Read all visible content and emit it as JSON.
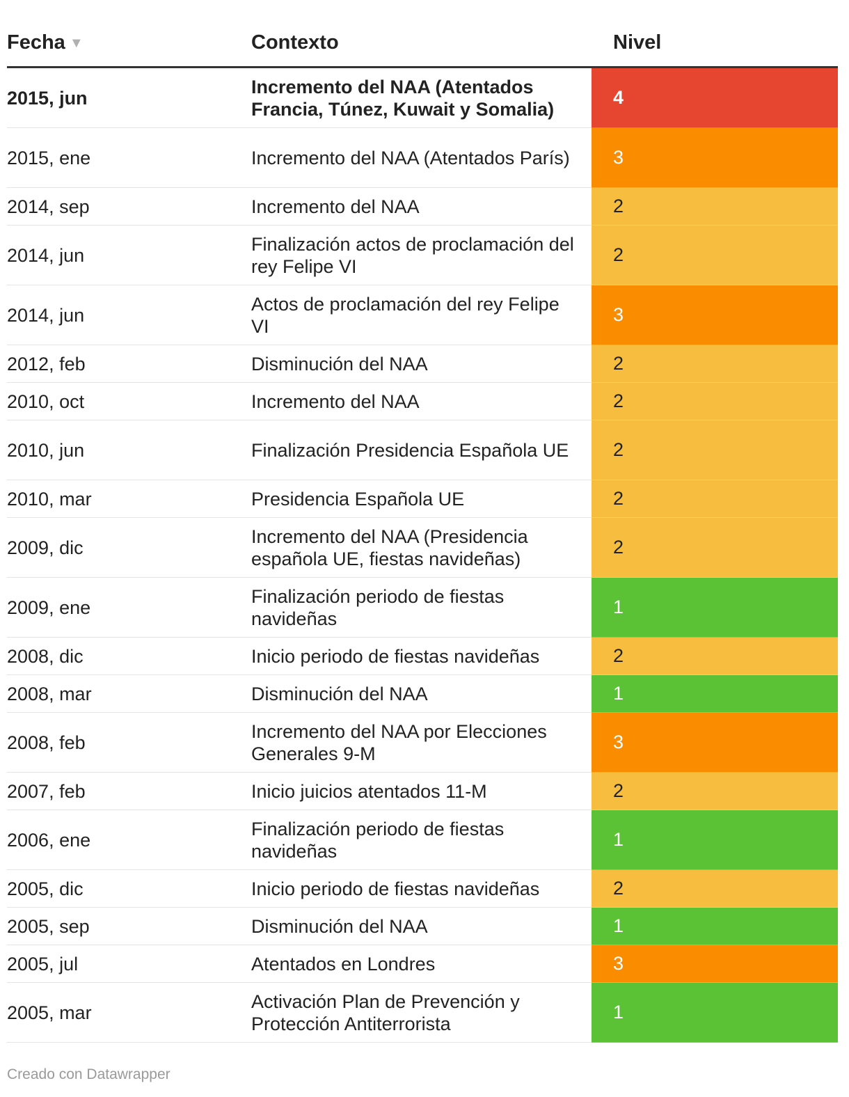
{
  "table": {
    "headers": {
      "fecha": "Fecha",
      "contexto": "Contexto",
      "nivel": "Nivel"
    },
    "sort_icon": "▼",
    "level_colors": {
      "1": "#5cc235",
      "2": "#f6bd3e",
      "3": "#fa8c00",
      "4": "#e64530"
    },
    "rows": [
      {
        "fecha": "2015, jun",
        "contexto": "Incremento del NAA (Atentados Francia, Túnez, Kuwait y Somalia)",
        "nivel": "4"
      },
      {
        "fecha": "2015, ene",
        "contexto": "Incremento del NAA (Atentados París)",
        "nivel": "3"
      },
      {
        "fecha": "2014, sep",
        "contexto": "Incremento del NAA",
        "nivel": "2"
      },
      {
        "fecha": "2014, jun",
        "contexto": "Finalización actos de proclamación del rey Felipe VI",
        "nivel": "2"
      },
      {
        "fecha": "2014, jun",
        "contexto": "Actos de proclamación del rey Felipe VI",
        "nivel": "3"
      },
      {
        "fecha": "2012, feb",
        "contexto": "Disminución del NAA",
        "nivel": "2"
      },
      {
        "fecha": "2010, oct",
        "contexto": "Incremento del NAA",
        "nivel": "2"
      },
      {
        "fecha": "2010, jun",
        "contexto": "Finalización Presidencia Española UE",
        "nivel": "2"
      },
      {
        "fecha": "2010, mar",
        "contexto": "Presidencia Española UE",
        "nivel": "2"
      },
      {
        "fecha": "2009, dic",
        "contexto": "Incremento del NAA (Presidencia española UE, fiestas navideñas)",
        "nivel": "2"
      },
      {
        "fecha": "2009, ene",
        "contexto": "Finalización periodo de fiestas navideñas",
        "nivel": "1"
      },
      {
        "fecha": "2008, dic",
        "contexto": "Inicio periodo de fiestas navideñas",
        "nivel": "2"
      },
      {
        "fecha": "2008, mar",
        "contexto": "Disminución del NAA",
        "nivel": "1"
      },
      {
        "fecha": "2008, feb",
        "contexto": "Incremento del NAA por Elecciones Generales 9-M",
        "nivel": "3"
      },
      {
        "fecha": "2007, feb",
        "contexto": "Inicio juicios atentados 11-M",
        "nivel": "2"
      },
      {
        "fecha": "2006, ene",
        "contexto": "Finalización periodo de fiestas navideñas",
        "nivel": "1"
      },
      {
        "fecha": "2005, dic",
        "contexto": "Inicio periodo de fiestas navideñas",
        "nivel": "2"
      },
      {
        "fecha": "2005, sep",
        "contexto": "Disminución del NAA",
        "nivel": "1"
      },
      {
        "fecha": "2005, jul",
        "contexto": "Atentados en Londres",
        "nivel": "3"
      },
      {
        "fecha": "2005, mar",
        "contexto": "Activación Plan de Prevención y Protección Antiterrorista",
        "nivel": "1"
      }
    ]
  },
  "footer": {
    "credit": "Creado con Datawrapper"
  }
}
